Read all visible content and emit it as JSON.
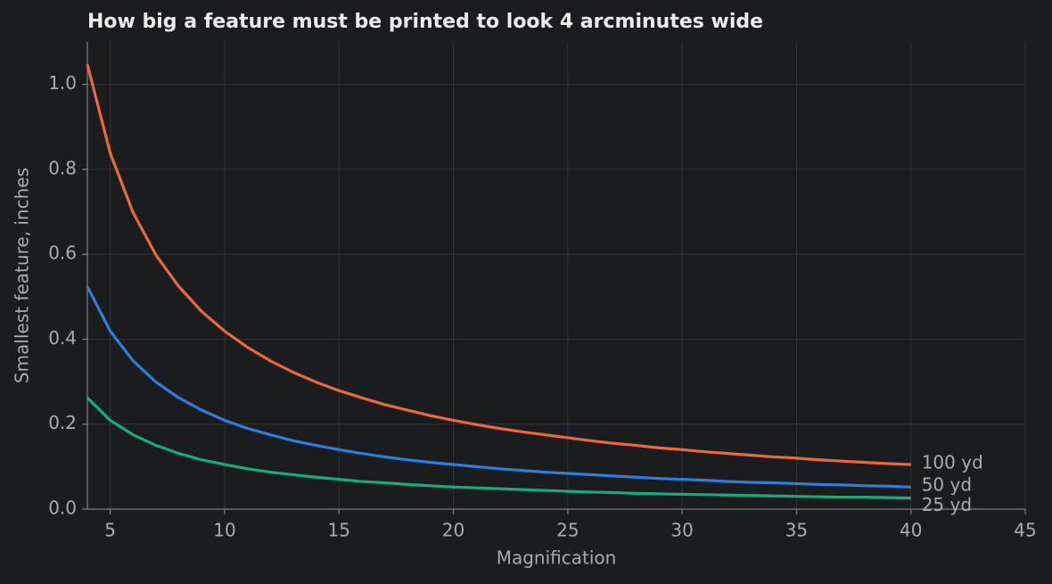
{
  "chart_data": {
    "type": "line",
    "title": "How big a feature must be printed to look 4 arcminutes wide",
    "x_label": "Magnification",
    "y_label": "Smallest feature, inches",
    "x": [
      4,
      5,
      6,
      7,
      8,
      9,
      10,
      11,
      12,
      13,
      14,
      15,
      16,
      17,
      18,
      19,
      20,
      21,
      22,
      23,
      24,
      25,
      26,
      27,
      28,
      29,
      30,
      31,
      32,
      33,
      34,
      35,
      36,
      37,
      38,
      39,
      40
    ],
    "series": [
      {
        "name": "100 yd",
        "color": "#e8693a",
        "values": [
          1.047,
          0.838,
          0.698,
          0.598,
          0.524,
          0.465,
          0.419,
          0.381,
          0.349,
          0.322,
          0.299,
          0.279,
          0.262,
          0.246,
          0.233,
          0.22,
          0.209,
          0.199,
          0.19,
          0.182,
          0.175,
          0.168,
          0.161,
          0.155,
          0.15,
          0.144,
          0.14,
          0.135,
          0.131,
          0.127,
          0.123,
          0.12,
          0.116,
          0.113,
          0.11,
          0.107,
          0.105
        ]
      },
      {
        "name": "50 yd",
        "color": "#2f7ed8",
        "values": [
          0.524,
          0.419,
          0.349,
          0.299,
          0.262,
          0.233,
          0.209,
          0.19,
          0.175,
          0.161,
          0.15,
          0.14,
          0.131,
          0.123,
          0.116,
          0.11,
          0.105,
          0.1,
          0.095,
          0.091,
          0.087,
          0.084,
          0.081,
          0.078,
          0.075,
          0.072,
          0.07,
          0.068,
          0.065,
          0.063,
          0.062,
          0.06,
          0.058,
          0.057,
          0.055,
          0.054,
          0.052
        ]
      },
      {
        "name": "25 yd",
        "color": "#1aab7a",
        "values": [
          0.262,
          0.209,
          0.175,
          0.15,
          0.131,
          0.116,
          0.105,
          0.095,
          0.087,
          0.081,
          0.075,
          0.07,
          0.065,
          0.062,
          0.058,
          0.055,
          0.052,
          0.05,
          0.048,
          0.046,
          0.044,
          0.042,
          0.04,
          0.039,
          0.037,
          0.036,
          0.035,
          0.034,
          0.033,
          0.032,
          0.031,
          0.03,
          0.029,
          0.028,
          0.028,
          0.027,
          0.026
        ]
      }
    ],
    "xlim": [
      4,
      45
    ],
    "xticks": [
      5,
      10,
      15,
      20,
      25,
      30,
      35,
      40,
      45
    ],
    "ylim": [
      0,
      1.1
    ],
    "yticks": [
      {
        "value": 0,
        "label": "0.0"
      },
      0.2,
      0.4,
      0.6,
      0.8,
      {
        "value": 1,
        "label": "1.0"
      }
    ],
    "grid": true
  }
}
